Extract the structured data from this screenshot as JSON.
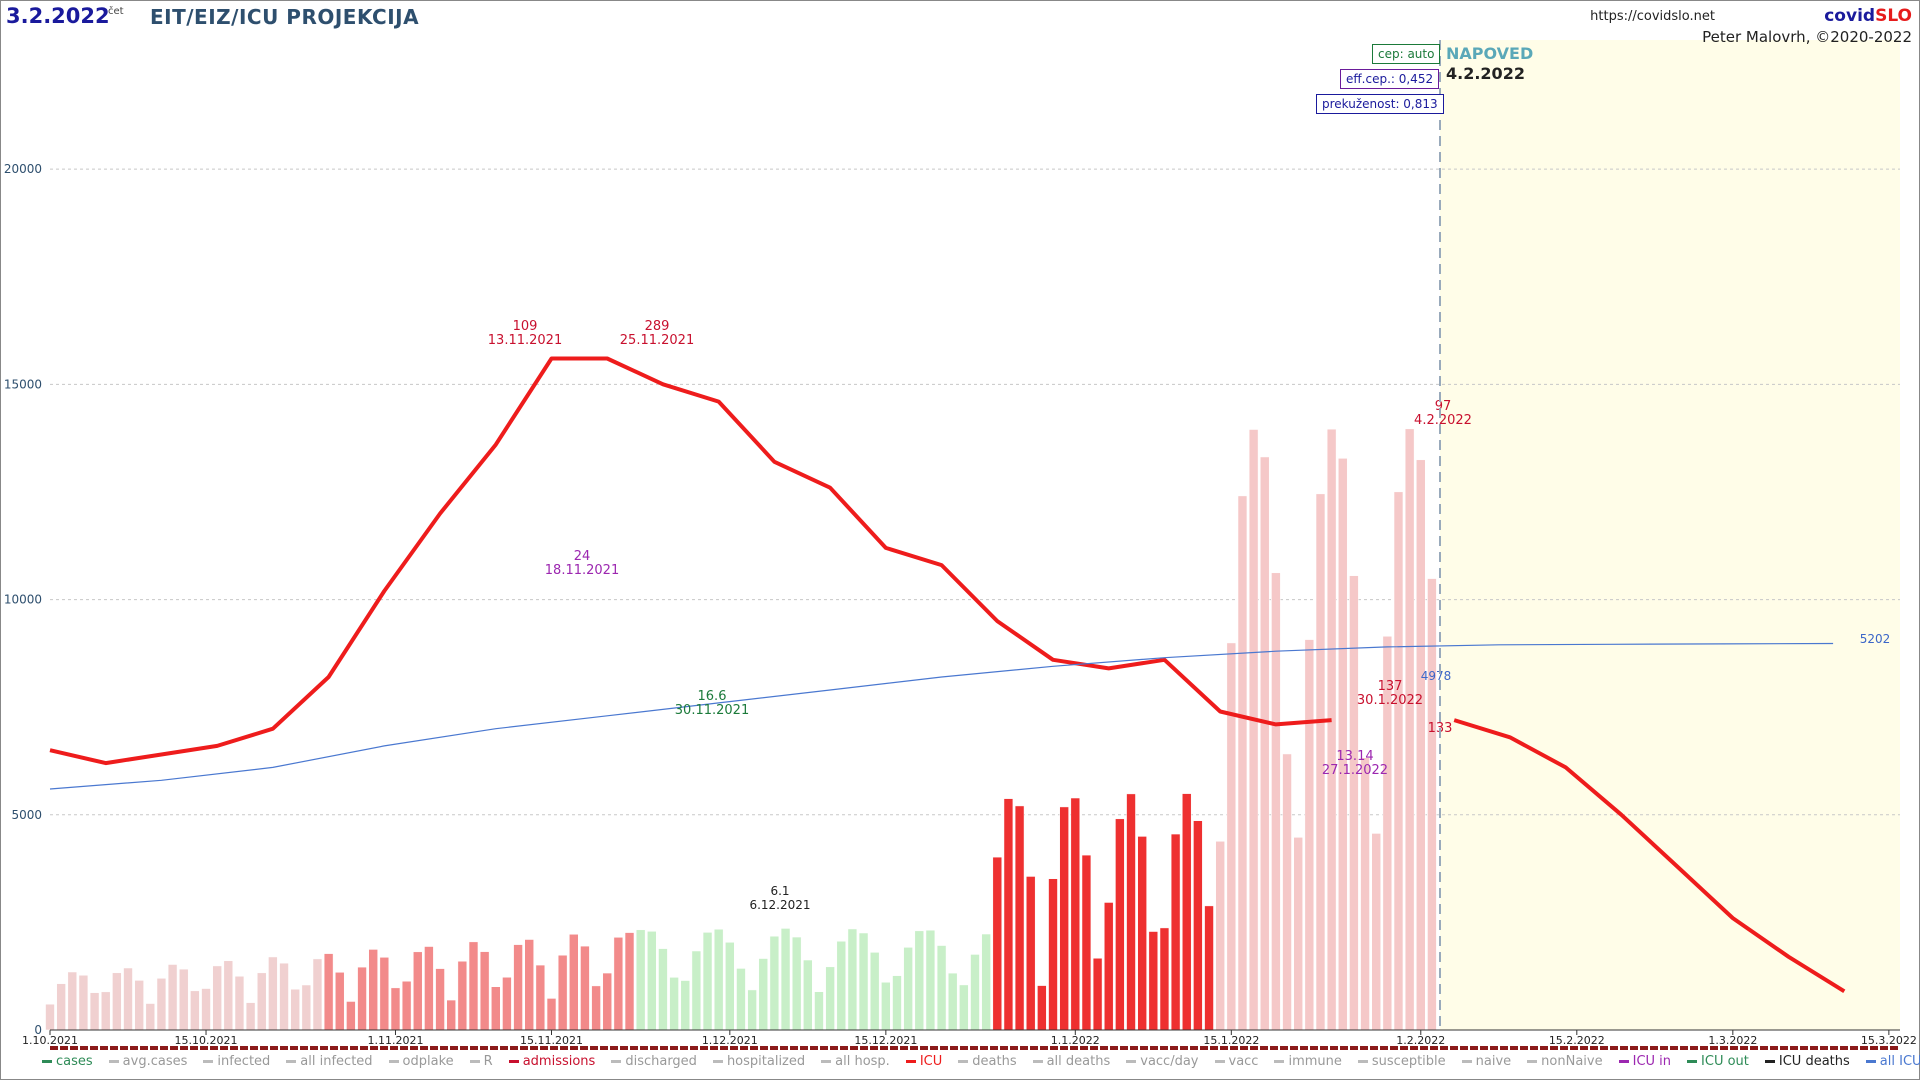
{
  "header": {
    "date": "3.2.2022",
    "day": "čet",
    "title": "EIT/EIZ/ICU PROJEKCIJA",
    "url": "https://covidslo.net",
    "brand_a": "covid",
    "brand_b": "SLO",
    "author": "Peter Malovrh, ©2020-2022"
  },
  "info_boxes": {
    "cep": "cep: auto",
    "eff_cep": "eff.cep.: 0,452",
    "prekuzenost": "prekuženost: 0,813"
  },
  "forecast": {
    "label": "NAPOVED",
    "date": "4.2.2022"
  },
  "colors": {
    "icu": "#ee1c1c",
    "admissions": "#d9534f",
    "icu_in": "#9c27b0",
    "icu_out": "#2e8b57",
    "icu_deaths": "#333333",
    "all_icu": "#4a78d0",
    "forecast_bg": "#fffde8"
  },
  "chart_data": {
    "type": "bar",
    "ylim": [
      0,
      23000
    ],
    "y_ticks": [
      "0",
      "5000",
      "10000",
      "15000",
      "20000"
    ],
    "x_ticks": [
      "1.10.2021",
      "15.10.2021",
      "1.11.2021",
      "15.11.2021",
      "1.12.2021",
      "15.12.2021",
      "1.1.2022",
      "15.1.2022",
      "1.2.2022",
      "15.2.2022",
      "1.3.2022",
      "15.3.2022"
    ],
    "grid": true,
    "legend_position": "bottom",
    "legend": [
      "cases",
      "avg.cases",
      "infected",
      "all infected",
      "odplake",
      "R",
      "admissions",
      "discharged",
      "hospitalized",
      "all hosp.",
      "ICU",
      "deaths",
      "all deaths",
      "vacc/day",
      "vacc",
      "immune",
      "susceptible",
      "naive",
      "nonNaive",
      "ICU in",
      "ICU out",
      "ICU deaths",
      "all ICU"
    ],
    "annotations": [
      {
        "value": "109",
        "date": "13.11.2021"
      },
      {
        "value": "289",
        "date": "25.11.2021"
      },
      {
        "value": "24",
        "date": "18.11.2021"
      },
      {
        "value": "16.6",
        "date": "30.11.2021"
      },
      {
        "value": "6.1",
        "date": "6.12.2021"
      },
      {
        "value": "137",
        "date": "30.1.2022"
      },
      {
        "value": "13.14",
        "date": "27.1.2022"
      },
      {
        "value": "97",
        "date": "4.2.2022"
      },
      {
        "value": "133",
        "date": ""
      },
      {
        "value": "4978",
        "date": ""
      },
      {
        "value": "5202",
        "date": ""
      }
    ],
    "series": [
      {
        "name": "ICU",
        "x_start": "1.10.2021",
        "step_days": 5,
        "values": [
          6500,
          6200,
          6400,
          6600,
          7000,
          8200,
          10200,
          12000,
          13600,
          15600,
          15600,
          15000,
          14600,
          13200,
          12600,
          11200,
          10800,
          9500,
          8600,
          8400,
          8600,
          7400,
          7100,
          7200
        ]
      },
      {
        "name": "ICU forecast",
        "x_start": "4.2.2022",
        "step_days": 5,
        "values": [
          7200,
          6800,
          6100,
          5000,
          3800,
          2600,
          1700,
          900
        ]
      },
      {
        "name": "all ICU",
        "x_start": "1.10.2021",
        "step_days": 10,
        "values": [
          5600,
          5800,
          6100,
          6600,
          7000,
          7300,
          7600,
          7900,
          8200,
          8450,
          8650,
          8800,
          8900,
          8950,
          8960,
          8970,
          8980
        ]
      }
    ]
  }
}
